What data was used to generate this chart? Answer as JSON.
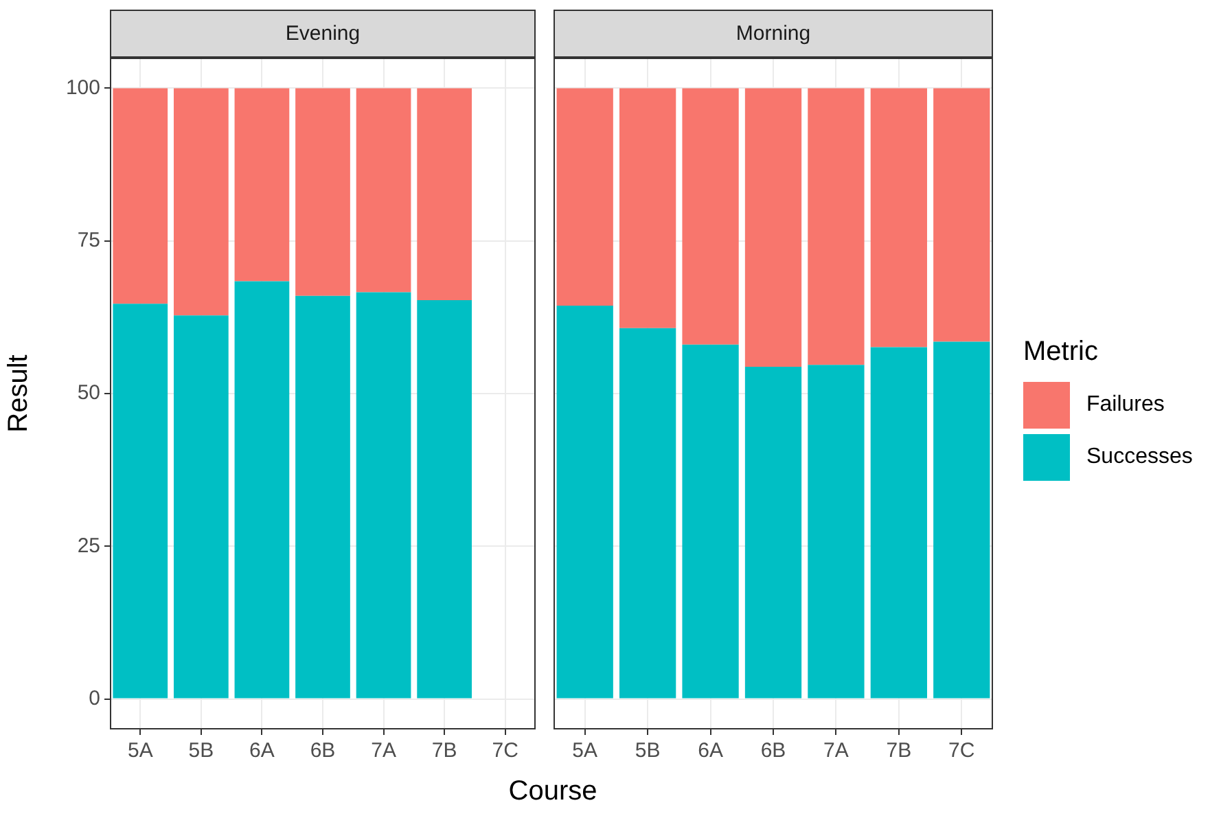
{
  "chart_data": [
    {
      "type": "bar",
      "title": "Evening",
      "xlabel": "Course",
      "ylabel": "Result",
      "categories": [
        "5A",
        "5B",
        "6A",
        "6B",
        "7A",
        "7B",
        "7C"
      ],
      "stacked": true,
      "ylim": [
        -5,
        105
      ],
      "yticks": [
        0,
        25,
        50,
        75,
        100
      ],
      "grid": true,
      "legend": false,
      "series": [
        {
          "color": "#00bfc4",
          "values": [
            64.7,
            62.8,
            68.4,
            66,
            66.6,
            65.3,
            null
          ]
        },
        {
          "color": "#f8766d",
          "values": [
            35.3,
            37.2,
            31.6,
            34,
            33.4,
            34.7,
            null
          ]
        }
      ]
    },
    {
      "type": "bar",
      "title": "Morning",
      "categories": [
        "5A",
        "5B",
        "6A",
        "6B",
        "7A",
        "7B",
        "7C"
      ],
      "stacked": true,
      "ylim": [
        -5,
        105
      ],
      "yticks": [
        0,
        25,
        50,
        75,
        100
      ],
      "grid": true,
      "legend": "right",
      "legend_title": "Metric",
      "tick_labels": "x",
      "series": [
        {
          "name": "Successes",
          "color": "#00bfc4",
          "values": [
            64.4,
            60.7,
            58,
            54.4,
            54.7,
            57.6,
            58.5
          ]
        },
        {
          "name": "Failures",
          "color": "#f8766d",
          "values": [
            35.6,
            39.3,
            42,
            45.6,
            45.3,
            42.4,
            41.5
          ]
        }
      ]
    }
  ]
}
